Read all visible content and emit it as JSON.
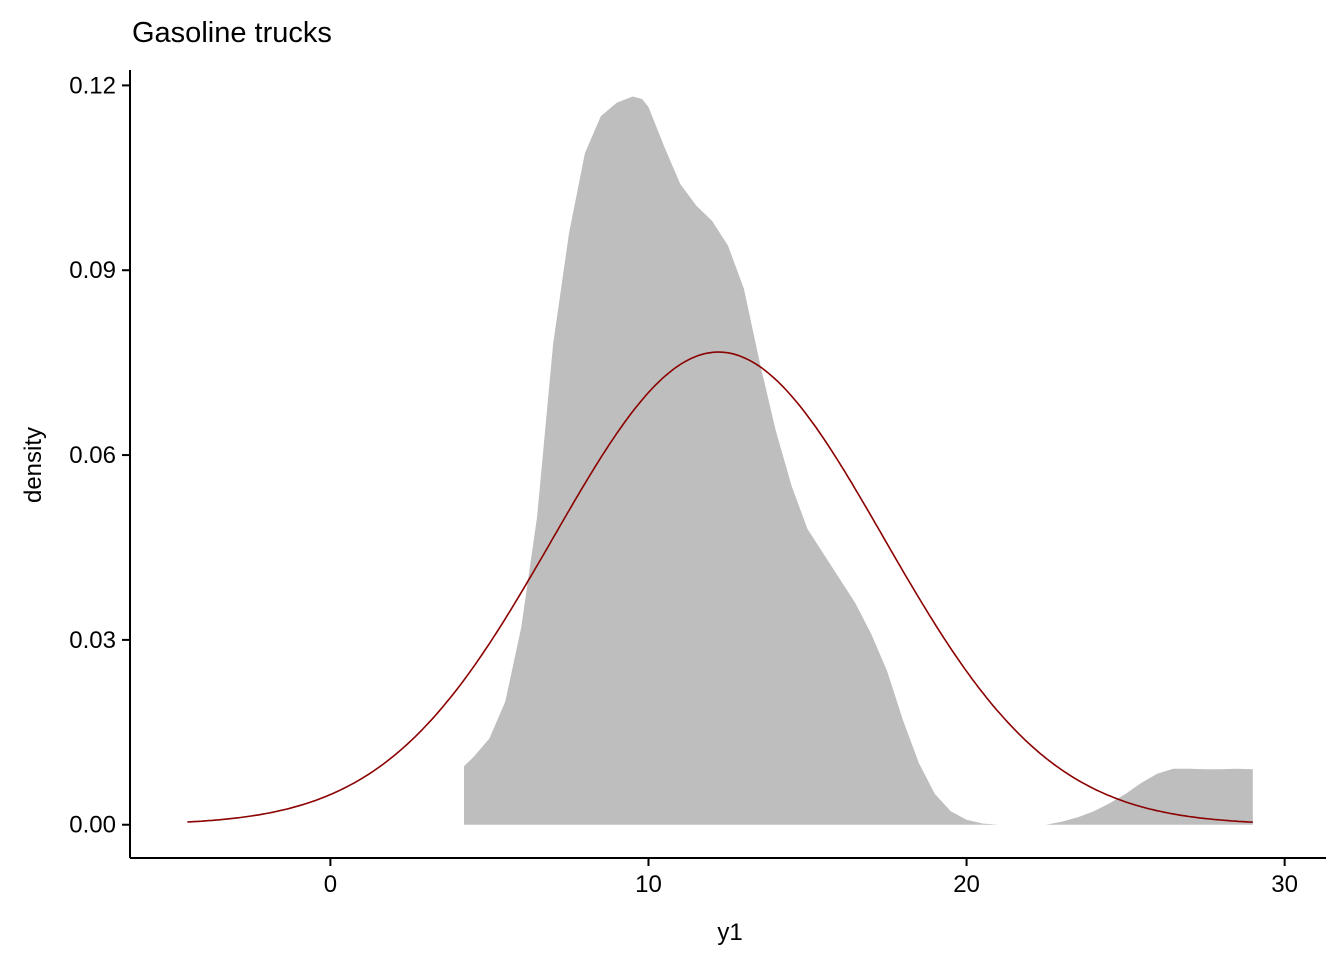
{
  "chart_data": {
    "type": "area",
    "title": "Gasoline trucks",
    "xlabel": "y1",
    "ylabel": "density",
    "xlim": [
      -6.3,
      31.3
    ],
    "ylim": [
      -0.0054,
      0.1225
    ],
    "x_ticks": [
      0,
      10,
      20,
      30
    ],
    "x_tick_labels": [
      "0",
      "10",
      "20",
      "30"
    ],
    "y_ticks": [
      0.0,
      0.03,
      0.06,
      0.09,
      0.12
    ],
    "y_tick_labels": [
      "0.00",
      "0.03",
      "0.06",
      "0.09",
      "0.12"
    ],
    "grid": false,
    "legend": "none",
    "series": [
      {
        "kind": "density-area",
        "color": "#bebebe",
        "x": [
          4.2,
          4.5,
          5.0,
          5.5,
          6.0,
          6.5,
          7.0,
          7.5,
          8.0,
          8.5,
          9.0,
          9.5,
          9.8,
          10.0,
          10.5,
          11.0,
          11.5,
          12.0,
          12.5,
          13.0,
          13.5,
          14.0,
          14.5,
          15.0,
          15.5,
          16.0,
          16.5,
          17.0,
          17.5,
          18.0,
          18.5,
          19.0,
          19.5,
          20.0,
          20.5,
          21.0,
          21.2,
          22.5,
          23.0,
          23.5,
          24.0,
          24.5,
          25.0,
          25.5,
          26.0,
          26.5,
          27.0,
          27.5,
          28.0,
          28.5,
          29.0
        ],
        "y": [
          0.0095,
          0.011,
          0.014,
          0.02,
          0.032,
          0.05,
          0.078,
          0.096,
          0.109,
          0.115,
          0.1172,
          0.1182,
          0.1178,
          0.1165,
          0.11,
          0.104,
          0.1005,
          0.098,
          0.094,
          0.087,
          0.075,
          0.064,
          0.055,
          0.048,
          0.044,
          0.04,
          0.036,
          0.031,
          0.025,
          0.017,
          0.01,
          0.005,
          0.0022,
          0.0008,
          0.0002,
          0.0,
          0.0,
          0.0,
          0.0005,
          0.0012,
          0.0022,
          0.0035,
          0.005,
          0.0068,
          0.0083,
          0.0091,
          0.0091,
          0.009,
          0.009,
          0.0091,
          0.009
        ]
      },
      {
        "kind": "normal-curve",
        "color": "#8b0000",
        "mean": 12.2,
        "sd": 5.2,
        "x_range": [
          -4.5,
          29.0
        ]
      }
    ]
  }
}
